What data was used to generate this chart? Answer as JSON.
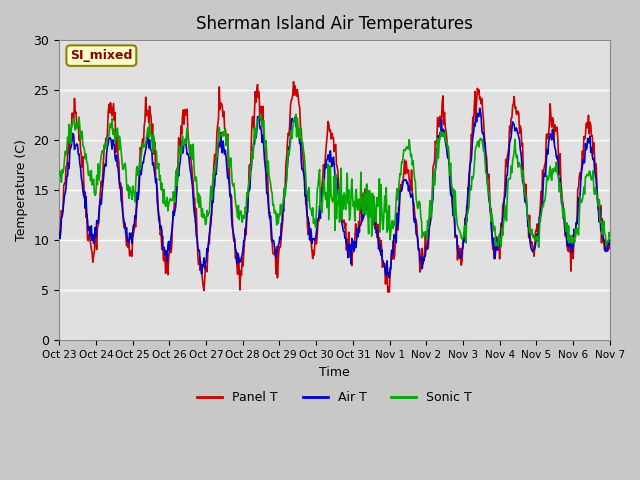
{
  "title": "Sherman Island Air Temperatures",
  "xlabel": "Time",
  "ylabel": "Temperature (C)",
  "ylim": [
    0,
    30
  ],
  "yticks": [
    0,
    5,
    10,
    15,
    20,
    25,
    30
  ],
  "xlim": [
    0,
    360
  ],
  "plot_bg_color": "#e0e0e0",
  "label_box_text": "SI_mixed",
  "label_box_color": "#ffffcc",
  "label_box_edge": "#8B8000",
  "label_text_color": "#8B0000",
  "line_colors": {
    "panel": "#cc0000",
    "air": "#0000cc",
    "sonic": "#00aa00"
  },
  "line_width": 1.2,
  "legend_labels": [
    "Panel T",
    "Air T",
    "Sonic T"
  ],
  "x_tick_labels": [
    "Oct 23",
    "Oct 24",
    "Oct 25",
    "Oct 26",
    "Oct 27",
    "Oct 28",
    "Oct 29",
    "Oct 30",
    "Oct 31",
    "Nov 1",
    "Nov 2",
    "Nov 3",
    "Nov 4",
    "Nov 5",
    "Nov 6",
    "Nov 7"
  ],
  "x_tick_positions": [
    0,
    24,
    48,
    72,
    96,
    120,
    144,
    168,
    192,
    216,
    240,
    264,
    288,
    312,
    336,
    360
  ]
}
